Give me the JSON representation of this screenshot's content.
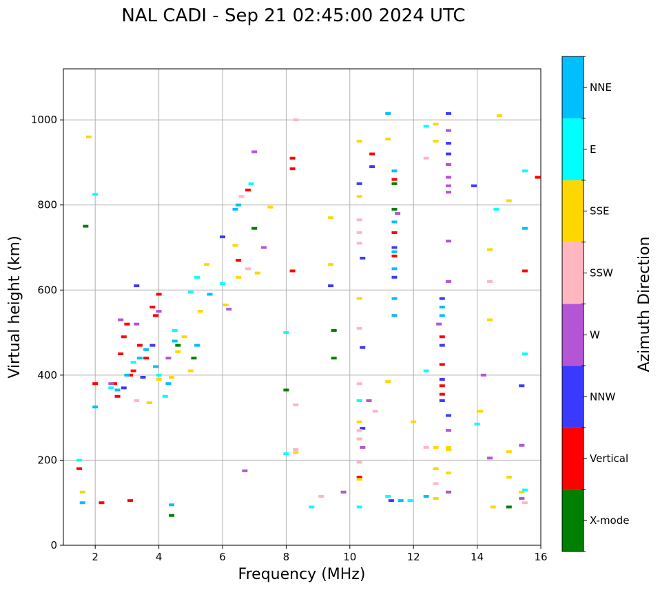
{
  "chart_data": {
    "type": "scatter",
    "title": "NAL CADI - Sep 21 02:45:00 2024 UTC",
    "xlabel": "Frequency (MHz)",
    "ylabel": "Virtual height (km)",
    "xlim": [
      1,
      16
    ],
    "ylim": [
      0,
      1120
    ],
    "xticks": [
      "2",
      "4",
      "6",
      "8",
      "10",
      "12",
      "14",
      "16"
    ],
    "yticks": [
      "0",
      "200",
      "400",
      "600",
      "800",
      "1000"
    ],
    "grid": true,
    "colorbar": {
      "label": "Azimuth Direction",
      "categories": [
        {
          "name": "X-mode",
          "color": "#008000"
        },
        {
          "name": "Vertical",
          "color": "#ff0000"
        },
        {
          "name": "NNW",
          "color": "#3a3aff"
        },
        {
          "name": "W",
          "color": "#b455d6"
        },
        {
          "name": "SSW",
          "color": "#ffb6c1"
        },
        {
          "name": "SSE",
          "color": "#ffd700"
        },
        {
          "name": "E",
          "color": "#00ffff"
        },
        {
          "name": "NNE",
          "color": "#00bfff"
        }
      ]
    },
    "series": [
      {
        "name": "X-mode",
        "points": [
          [
            1.7,
            750
          ],
          [
            4.6,
            470
          ],
          [
            7.0,
            745
          ],
          [
            8.0,
            365
          ],
          [
            9.5,
            505
          ],
          [
            9.5,
            440
          ],
          [
            11.4,
            850
          ],
          [
            11.4,
            790
          ],
          [
            15.0,
            90
          ],
          [
            4.4,
            70
          ],
          [
            5.1,
            440
          ]
        ]
      },
      {
        "name": "Vertical",
        "points": [
          [
            1.5,
            180
          ],
          [
            2.0,
            380
          ],
          [
            2.2,
            100
          ],
          [
            2.6,
            380
          ],
          [
            2.7,
            350
          ],
          [
            2.8,
            450
          ],
          [
            2.9,
            490
          ],
          [
            3.0,
            520
          ],
          [
            3.1,
            400
          ],
          [
            3.2,
            410
          ],
          [
            3.4,
            470
          ],
          [
            3.6,
            440
          ],
          [
            3.8,
            560
          ],
          [
            3.9,
            540
          ],
          [
            4.0,
            590
          ],
          [
            6.5,
            670
          ],
          [
            6.8,
            835
          ],
          [
            8.2,
            910
          ],
          [
            8.2,
            885
          ],
          [
            8.2,
            645
          ],
          [
            10.3,
            160
          ],
          [
            10.7,
            920
          ],
          [
            11.4,
            860
          ],
          [
            11.4,
            680
          ],
          [
            11.4,
            540
          ],
          [
            11.4,
            735
          ],
          [
            12.9,
            490
          ],
          [
            12.9,
            425
          ],
          [
            12.9,
            375
          ],
          [
            12.9,
            355
          ],
          [
            15.5,
            645
          ],
          [
            15.9,
            865
          ],
          [
            3.1,
            105
          ]
        ]
      },
      {
        "name": "NNW",
        "points": [
          [
            2.9,
            370
          ],
          [
            3.3,
            610
          ],
          [
            3.5,
            395
          ],
          [
            3.8,
            470
          ],
          [
            6.0,
            725
          ],
          [
            9.4,
            610
          ],
          [
            10.3,
            850
          ],
          [
            10.4,
            675
          ],
          [
            10.4,
            465
          ],
          [
            10.4,
            275
          ],
          [
            10.7,
            890
          ],
          [
            11.3,
            105
          ],
          [
            11.4,
            700
          ],
          [
            11.4,
            630
          ],
          [
            12.9,
            580
          ],
          [
            12.9,
            470
          ],
          [
            12.9,
            390
          ],
          [
            12.9,
            340
          ],
          [
            13.1,
            1015
          ],
          [
            13.1,
            945
          ],
          [
            13.1,
            920
          ],
          [
            13.1,
            305
          ],
          [
            13.9,
            845
          ],
          [
            15.4,
            375
          ]
        ]
      },
      {
        "name": "W",
        "points": [
          [
            2.5,
            380
          ],
          [
            2.8,
            530
          ],
          [
            3.3,
            520
          ],
          [
            4.0,
            550
          ],
          [
            4.3,
            440
          ],
          [
            6.2,
            555
          ],
          [
            6.7,
            175
          ],
          [
            7.0,
            925
          ],
          [
            7.3,
            700
          ],
          [
            9.8,
            125
          ],
          [
            10.4,
            230
          ],
          [
            10.6,
            340
          ],
          [
            11.5,
            780
          ],
          [
            12.8,
            520
          ],
          [
            13.1,
            975
          ],
          [
            13.1,
            895
          ],
          [
            13.1,
            865
          ],
          [
            13.1,
            845
          ],
          [
            13.1,
            830
          ],
          [
            13.1,
            715
          ],
          [
            13.1,
            620
          ],
          [
            13.1,
            270
          ],
          [
            13.1,
            125
          ],
          [
            14.2,
            400
          ],
          [
            14.4,
            205
          ],
          [
            15.4,
            235
          ],
          [
            15.4,
            110
          ]
        ]
      },
      {
        "name": "SSW",
        "points": [
          [
            3.3,
            340
          ],
          [
            6.6,
            820
          ],
          [
            6.8,
            650
          ],
          [
            8.3,
            1000
          ],
          [
            8.3,
            330
          ],
          [
            8.3,
            225
          ],
          [
            9.1,
            115
          ],
          [
            10.3,
            765
          ],
          [
            10.3,
            735
          ],
          [
            10.3,
            710
          ],
          [
            10.3,
            510
          ],
          [
            10.3,
            380
          ],
          [
            10.3,
            270
          ],
          [
            10.3,
            250
          ],
          [
            10.3,
            195
          ],
          [
            10.8,
            315
          ],
          [
            12.4,
            910
          ],
          [
            12.4,
            230
          ],
          [
            12.7,
            180
          ],
          [
            12.7,
            145
          ],
          [
            14.4,
            620
          ],
          [
            15.5,
            100
          ]
        ]
      },
      {
        "name": "SSE",
        "points": [
          [
            1.8,
            960
          ],
          [
            1.6,
            125
          ],
          [
            3.7,
            335
          ],
          [
            4.0,
            390
          ],
          [
            4.4,
            395
          ],
          [
            4.6,
            455
          ],
          [
            4.8,
            490
          ],
          [
            5.0,
            410
          ],
          [
            5.3,
            550
          ],
          [
            5.5,
            660
          ],
          [
            6.1,
            565
          ],
          [
            6.4,
            705
          ],
          [
            6.5,
            630
          ],
          [
            7.1,
            640
          ],
          [
            7.5,
            795
          ],
          [
            8.3,
            218
          ],
          [
            9.4,
            770
          ],
          [
            9.4,
            660
          ],
          [
            10.3,
            950
          ],
          [
            10.3,
            820
          ],
          [
            10.3,
            580
          ],
          [
            10.3,
            290
          ],
          [
            10.3,
            155
          ],
          [
            11.2,
            955
          ],
          [
            11.2,
            385
          ],
          [
            12.0,
            290
          ],
          [
            12.7,
            990
          ],
          [
            12.7,
            950
          ],
          [
            12.7,
            230
          ],
          [
            12.7,
            180
          ],
          [
            12.7,
            110
          ],
          [
            13.1,
            230
          ],
          [
            13.1,
            170
          ],
          [
            13.1,
            225
          ],
          [
            14.1,
            315
          ],
          [
            14.4,
            530
          ],
          [
            14.4,
            695
          ],
          [
            14.5,
            90
          ],
          [
            14.7,
            1010
          ],
          [
            15.0,
            810
          ],
          [
            15.0,
            160
          ],
          [
            15.0,
            220
          ],
          [
            15.4,
            125
          ]
        ]
      },
      {
        "name": "E",
        "points": [
          [
            1.5,
            200
          ],
          [
            2.0,
            825
          ],
          [
            2.5,
            370
          ],
          [
            3.2,
            430
          ],
          [
            4.0,
            400
          ],
          [
            4.2,
            350
          ],
          [
            4.5,
            505
          ],
          [
            5.0,
            595
          ],
          [
            5.2,
            630
          ],
          [
            5.6,
            590
          ],
          [
            6.0,
            615
          ],
          [
            6.9,
            850
          ],
          [
            8.0,
            500
          ],
          [
            8.0,
            215
          ],
          [
            8.8,
            90
          ],
          [
            10.3,
            340
          ],
          [
            10.3,
            90
          ],
          [
            11.2,
            115
          ],
          [
            11.9,
            105
          ],
          [
            12.4,
            410
          ],
          [
            12.4,
            985
          ],
          [
            14.0,
            285
          ],
          [
            14.6,
            790
          ],
          [
            15.5,
            880
          ],
          [
            15.5,
            450
          ],
          [
            15.5,
            130
          ]
        ]
      },
      {
        "name": "NNE",
        "points": [
          [
            2.0,
            325
          ],
          [
            2.7,
            365
          ],
          [
            3.0,
            400
          ],
          [
            3.4,
            440
          ],
          [
            3.6,
            460
          ],
          [
            3.9,
            420
          ],
          [
            4.3,
            380
          ],
          [
            4.5,
            480
          ],
          [
            5.2,
            470
          ],
          [
            5.6,
            590
          ],
          [
            6.4,
            790
          ],
          [
            6.5,
            800
          ],
          [
            11.2,
            1015
          ],
          [
            11.4,
            880
          ],
          [
            11.4,
            760
          ],
          [
            11.4,
            690
          ],
          [
            11.4,
            650
          ],
          [
            11.4,
            580
          ],
          [
            11.4,
            540
          ],
          [
            11.6,
            105
          ],
          [
            12.4,
            115
          ],
          [
            12.9,
            540
          ],
          [
            12.9,
            560
          ],
          [
            15.5,
            745
          ],
          [
            4.4,
            95
          ],
          [
            1.6,
            100
          ]
        ]
      }
    ]
  }
}
